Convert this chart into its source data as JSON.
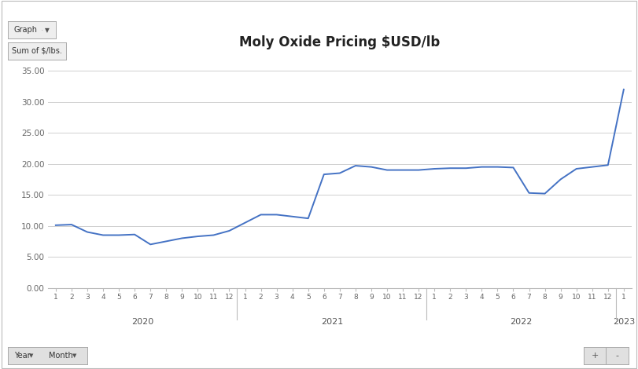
{
  "title": "Moly Oxide Pricing $USD/lb",
  "line_color": "#4472C4",
  "background_color": "#ffffff",
  "plot_bg_color": "#ffffff",
  "grid_color": "#d0d0d0",
  "ylim": [
    0,
    37.5
  ],
  "yticks": [
    0.0,
    5.0,
    10.0,
    15.0,
    20.0,
    25.0,
    30.0,
    35.0
  ],
  "ytick_labels": [
    "0.00",
    "5.00",
    "10.00",
    "15.00",
    "20.00",
    "25.00",
    "30.00",
    "35.00"
  ],
  "years": [
    "2020",
    "2021",
    "2022"
  ],
  "year_2023_label": "2023",
  "values": [
    10.1,
    10.2,
    9.0,
    8.5,
    8.5,
    8.6,
    7.0,
    7.5,
    8.0,
    8.3,
    8.5,
    9.2,
    10.5,
    11.8,
    11.8,
    11.5,
    11.2,
    18.3,
    18.5,
    19.7,
    19.5,
    19.0,
    19.0,
    19.0,
    19.2,
    19.3,
    19.3,
    19.5,
    19.5,
    19.4,
    15.3,
    15.2,
    17.5,
    19.2,
    19.5,
    19.8,
    32.0
  ],
  "header_button1": "Graph",
  "header_button2": "Sum of $/lbs.",
  "footer_button1": "Year",
  "footer_button2": "Month",
  "footer_pm_plus": "+",
  "footer_pm_minus": "-"
}
